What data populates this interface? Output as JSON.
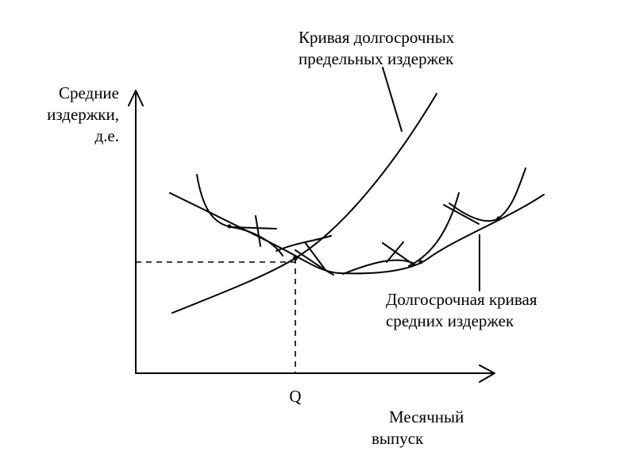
{
  "labels": {
    "y_axis": [
      "Средние",
      "издержки,",
      "д.е."
    ],
    "x_axis": [
      "Месячный",
      "выпуск"
    ],
    "q_tick": "Q",
    "lrmc": [
      "Кривая долгосрочных",
      "предельных издержек"
    ],
    "lrac": [
      "Долгосрочная кривая",
      "средних издержек"
    ]
  },
  "style": {
    "stroke": "#000000",
    "background": "#ffffff"
  }
}
